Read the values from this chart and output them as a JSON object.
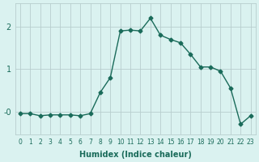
{
  "x": [
    0,
    1,
    2,
    3,
    4,
    5,
    6,
    7,
    8,
    9,
    10,
    11,
    12,
    13,
    14,
    15,
    16,
    17,
    18,
    19,
    20,
    21,
    22,
    23
  ],
  "y": [
    -0.05,
    -0.05,
    -0.1,
    -0.08,
    -0.08,
    -0.08,
    -0.1,
    -0.05,
    0.45,
    0.8,
    1.9,
    1.92,
    1.9,
    2.2,
    1.8,
    1.7,
    1.62,
    1.35,
    1.05,
    1.05,
    0.95,
    0.55,
    -0.3,
    -0.1
  ],
  "xlabel": "Humidex (Indice chaleur)",
  "ylabel": "",
  "line_color": "#1a6b5a",
  "marker": "D",
  "marker_size": 2.5,
  "line_width": 1.0,
  "bg_color": "#daf2f0",
  "grid_color": "#b8cece",
  "tick_color": "#1a6b5a",
  "ylim": [
    -0.55,
    2.55
  ],
  "xlim": [
    -0.5,
    23.5
  ],
  "xticks": [
    0,
    1,
    2,
    3,
    4,
    5,
    6,
    7,
    8,
    9,
    10,
    11,
    12,
    13,
    14,
    15,
    16,
    17,
    18,
    19,
    20,
    21,
    22,
    23
  ],
  "yticks": [
    0,
    1,
    2
  ],
  "ytick_labels": [
    "-0",
    "1",
    "2"
  ],
  "fig_bg_color": "#daf2f0",
  "xlabel_fontsize": 7,
  "xtick_fontsize": 5.5,
  "ytick_fontsize": 7
}
